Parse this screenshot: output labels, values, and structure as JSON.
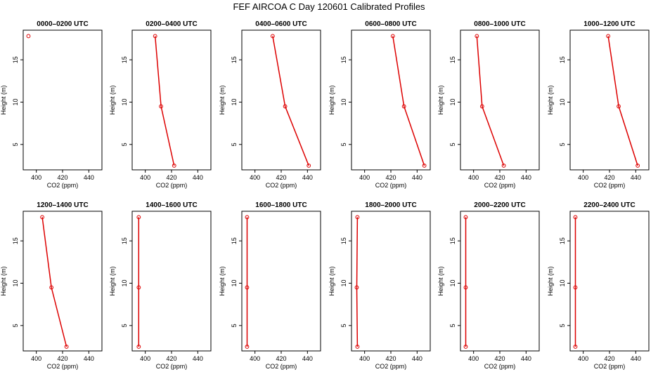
{
  "title": "FEF AIRCOA C  Day 120601  Calibrated Profiles",
  "chart_data": {
    "type": "line",
    "xlabel": "CO2 (ppm)",
    "ylabel": "Height (m)",
    "xlim": [
      390,
      450
    ],
    "ylim": [
      2,
      18.5
    ],
    "xticks": [
      400,
      420,
      440
    ],
    "yticks": [
      5,
      10,
      15
    ],
    "heights": [
      17.8,
      9.5,
      2.5
    ],
    "line_color": "#dd0000",
    "panels": [
      {
        "title": "0000–0200 UTC",
        "co2": [
          394,
          null,
          null
        ]
      },
      {
        "title": "0200–0400 UTC",
        "co2": [
          407.5,
          412,
          422
        ]
      },
      {
        "title": "0400–0600 UTC",
        "co2": [
          413.5,
          423,
          441
        ]
      },
      {
        "title": "0600–0800 UTC",
        "co2": [
          421.5,
          430,
          445.5
        ]
      },
      {
        "title": "0800–1000 UTC",
        "co2": [
          402.5,
          406.5,
          423
        ]
      },
      {
        "title": "1000–1200 UTC",
        "co2": [
          419,
          427,
          441.5
        ]
      },
      {
        "title": "1200–1400 UTC",
        "co2": [
          404.5,
          411.5,
          423
        ]
      },
      {
        "title": "1400–1600 UTC",
        "co2": [
          395,
          395,
          395
        ]
      },
      {
        "title": "1600–1800 UTC",
        "co2": [
          394,
          394,
          394
        ]
      },
      {
        "title": "1800–2000 UTC",
        "co2": [
          394.5,
          394,
          394.5
        ]
      },
      {
        "title": "2000–2200 UTC",
        "co2": [
          394,
          394,
          394
        ]
      },
      {
        "title": "2200–2400 UTC",
        "co2": [
          394,
          394,
          394
        ]
      }
    ]
  }
}
